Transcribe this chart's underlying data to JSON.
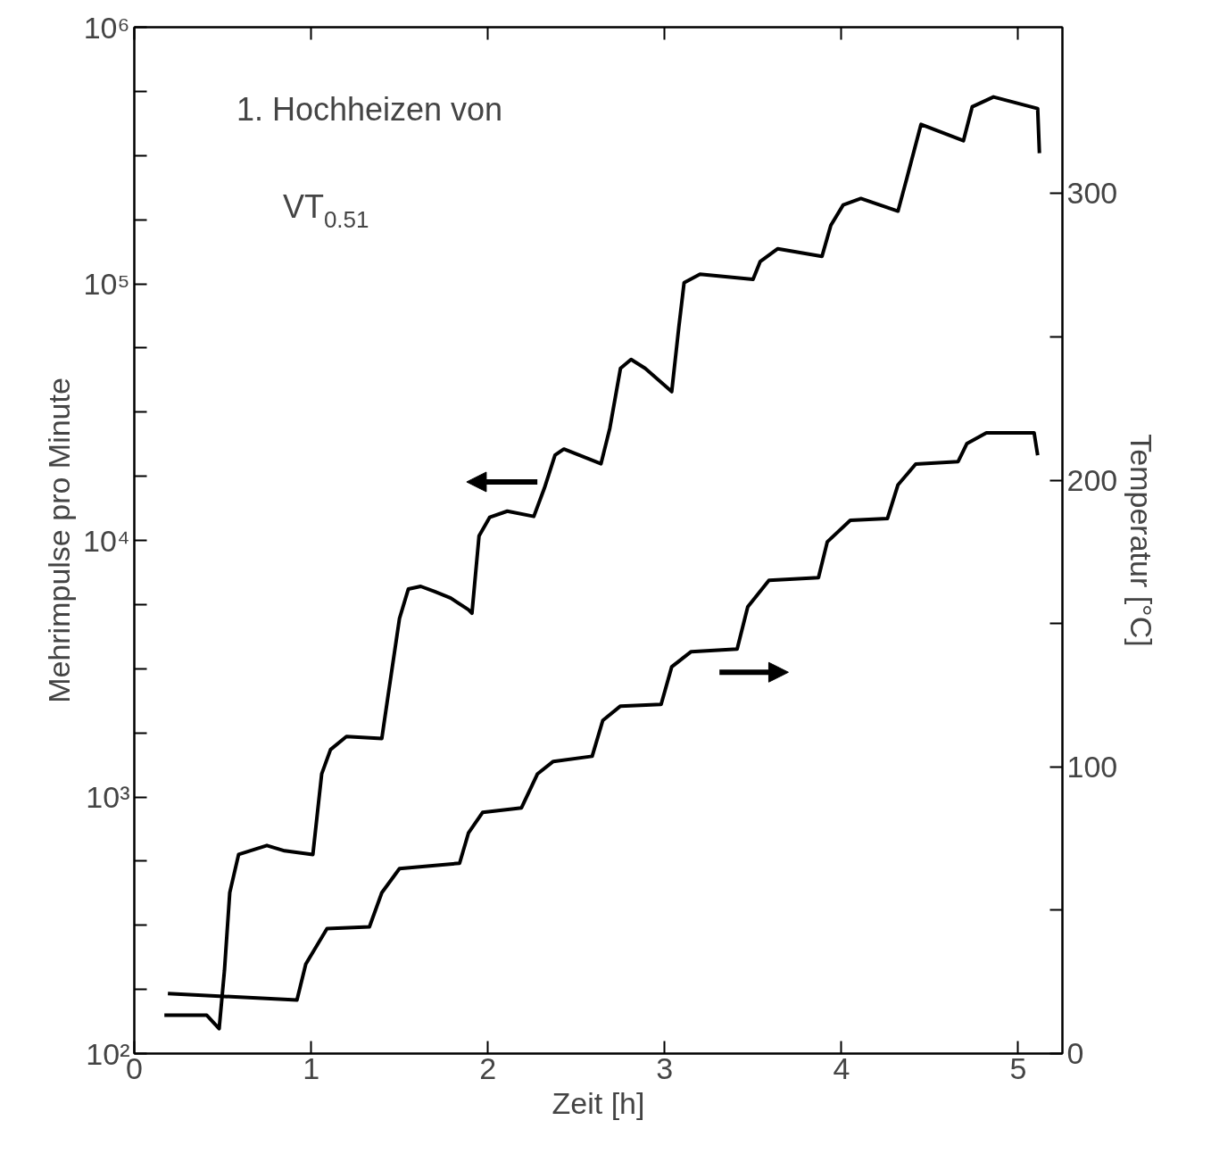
{
  "chart_data": {
    "type": "line",
    "xlabel": "Zeit [h]",
    "ylabel": "Mehrimpulse pro Minute",
    "y2label": "Temperatur [°C]",
    "annotations": [
      "1. Hochheizen von",
      "VT$_{0.51}$"
    ],
    "log": "y",
    "grid": false,
    "marker": "none",
    "line_style": "solid",
    "xlim": [
      0,
      5.25
    ],
    "xticks": [
      0,
      1,
      2,
      3,
      4,
      5
    ],
    "ylim": [
      100,
      1000000
    ],
    "yticks": [
      {
        "value": 100,
        "label": "10²"
      },
      {
        "value": 178,
        "label": null
      },
      {
        "value": 316,
        "label": null
      },
      {
        "value": 562,
        "label": null
      },
      {
        "value": 1000,
        "label": "10³"
      },
      {
        "value": 1778,
        "label": null
      },
      {
        "value": 3162,
        "label": null
      },
      {
        "value": 5623,
        "label": null
      },
      {
        "value": 10000,
        "label": "10⁴"
      },
      {
        "value": 17783,
        "label": null
      },
      {
        "value": 31623,
        "label": null
      },
      {
        "value": 56234,
        "label": null
      },
      {
        "value": 100000,
        "label": "10⁵"
      },
      {
        "value": 177828,
        "label": null
      },
      {
        "value": 316228,
        "label": null
      },
      {
        "value": 562341,
        "label": null
      },
      {
        "value": 1000000,
        "label": "10⁶"
      }
    ],
    "y2lim": [
      0,
      358
    ],
    "y2ticks": [
      0,
      {
        "value": 50,
        "label": null
      },
      100,
      {
        "value": 150,
        "label": null
      },
      200,
      {
        "value": 250,
        "label": null
      },
      300
    ],
    "series": [
      {
        "color": "#000000",
        "x": [
          0.17,
          0.41,
          0.48,
          0.51,
          0.54,
          0.59,
          0.75,
          0.85,
          1.01,
          1.06,
          1.11,
          1.2,
          1.4,
          1.43,
          1.5,
          1.55,
          1.62,
          1.7,
          1.79,
          1.89,
          1.91,
          1.95,
          2.01,
          2.11,
          2.26,
          2.32,
          2.38,
          2.43,
          2.64,
          2.69,
          2.75,
          2.81,
          2.89,
          3.04,
          3.08,
          3.11,
          3.2,
          3.5,
          3.54,
          3.64,
          3.89,
          3.94,
          4.01,
          4.11,
          4.32,
          4.37,
          4.45,
          4.69,
          4.74,
          4.86,
          5.11,
          5.12
        ],
        "values": [
          141,
          141,
          125,
          211,
          424,
          597,
          647,
          617,
          597,
          1230,
          1530,
          1720,
          1690,
          2340,
          4960,
          6460,
          6620,
          6310,
          5960,
          5370,
          5200,
          10400,
          12300,
          13000,
          12400,
          16000,
          21500,
          22700,
          19900,
          27400,
          46800,
          50700,
          46800,
          38000,
          67600,
          101000,
          109000,
          104000,
          122000,
          137000,
          128000,
          169000,
          203000,
          215000,
          192000,
          258000,
          418000,
          361000,
          490000,
          535000,
          482000,
          323000
        ]
      },
      {
        "color": "#000000",
        "axis": "y2",
        "x": [
          0.19,
          0.92,
          0.97,
          1.09,
          1.33,
          1.4,
          1.5,
          1.84,
          1.89,
          1.97,
          2.19,
          2.28,
          2.37,
          2.59,
          2.65,
          2.75,
          2.98,
          3.04,
          3.15,
          3.41,
          3.47,
          3.59,
          3.87,
          3.92,
          4.05,
          4.26,
          4.32,
          4.42,
          4.66,
          4.71,
          4.82,
          5.09,
          5.11
        ],
        "values": [
          20.9,
          18.7,
          31.2,
          43.6,
          44.2,
          56.1,
          64.5,
          66.4,
          76.9,
          84.1,
          85.7,
          97.5,
          101.9,
          103.7,
          116.2,
          121.2,
          121.8,
          134.9,
          140.2,
          141.1,
          155.8,
          165.1,
          166.0,
          178.5,
          186.0,
          186.6,
          198.4,
          205.6,
          206.5,
          212.8,
          216.5,
          216.5,
          208.7
        ]
      }
    ]
  }
}
